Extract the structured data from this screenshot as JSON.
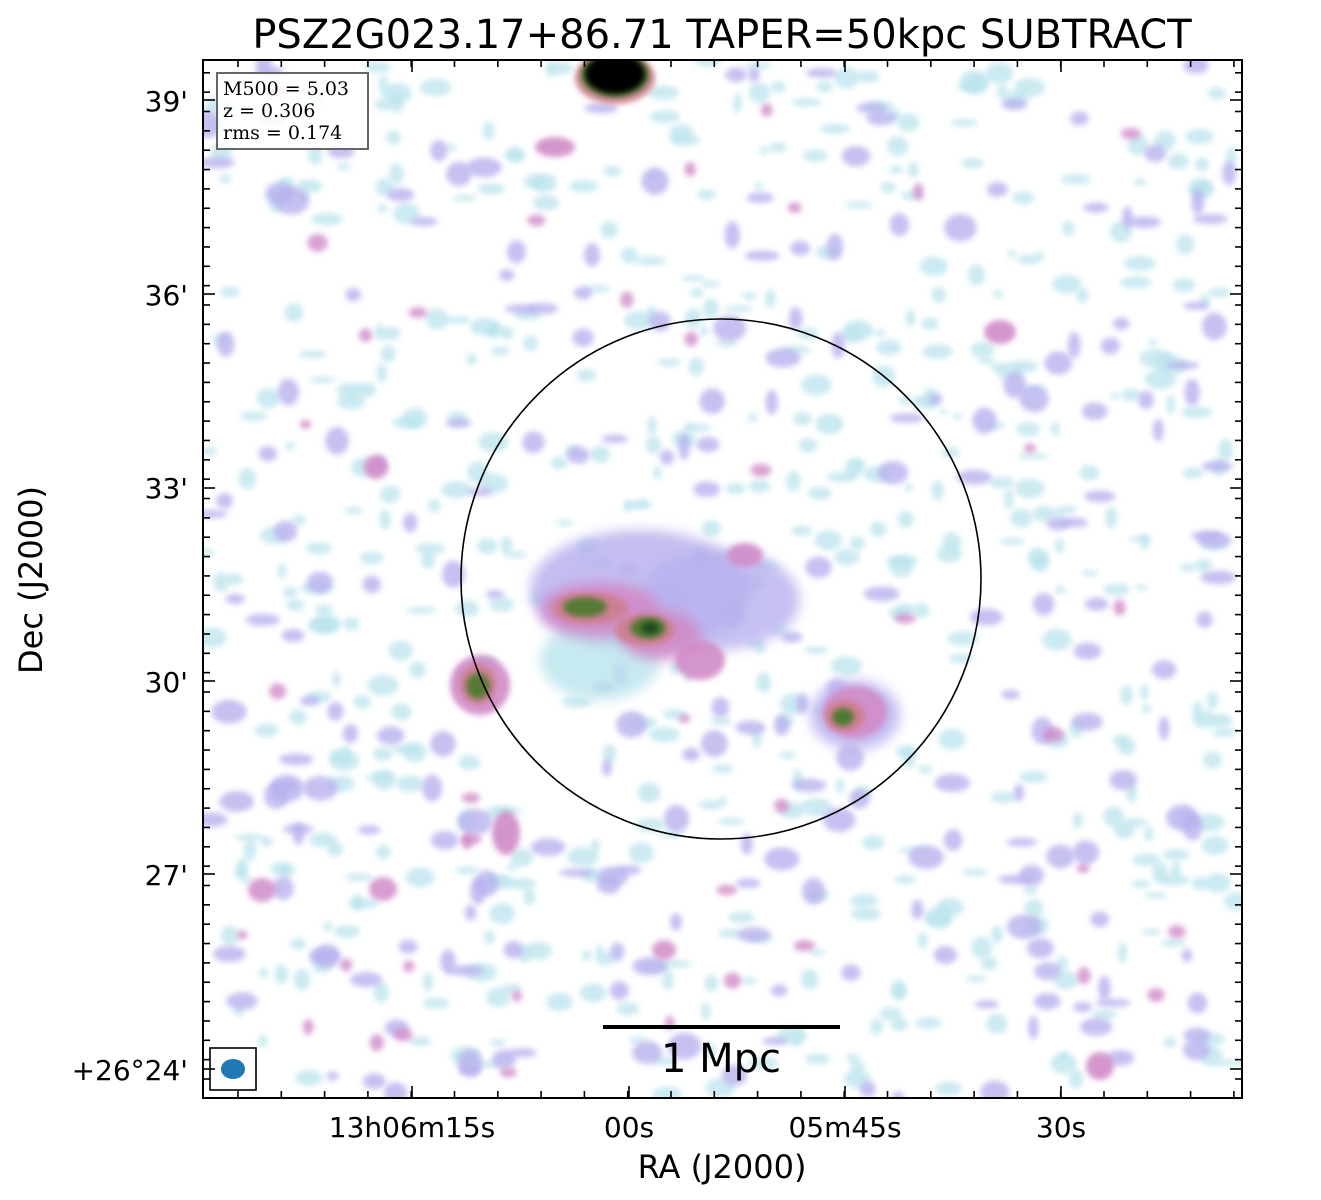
{
  "title": "PSZ2G023.17+86.71 TAPER=50kpc SUBTRACT",
  "info_box": {
    "m500": "M500 = 5.03",
    "z": "z = 0.306",
    "rms": "rms = 0.174"
  },
  "axes": {
    "xlabel": "RA (J2000)",
    "ylabel": "Dec (J2000)",
    "x_ticks": [
      "13h06m15s",
      "00s",
      "05m45s",
      "30s"
    ],
    "y_ticks": [
      "+26°24'",
      "27'",
      "30'",
      "33'",
      "36'",
      "39'"
    ]
  },
  "scale_bar": {
    "label": "1 Mpc"
  },
  "colors": {
    "faint": "#b9e3ec",
    "low": "#b8b2ee",
    "mid": "#d08bc8",
    "high": "#cf7e90",
    "peak": "#4f7a2f",
    "core": "#1d4a1a",
    "saturated": "#000000",
    "beam": "#1f77b4"
  },
  "icons": {
    "beam": "beam-ellipse-icon"
  }
}
